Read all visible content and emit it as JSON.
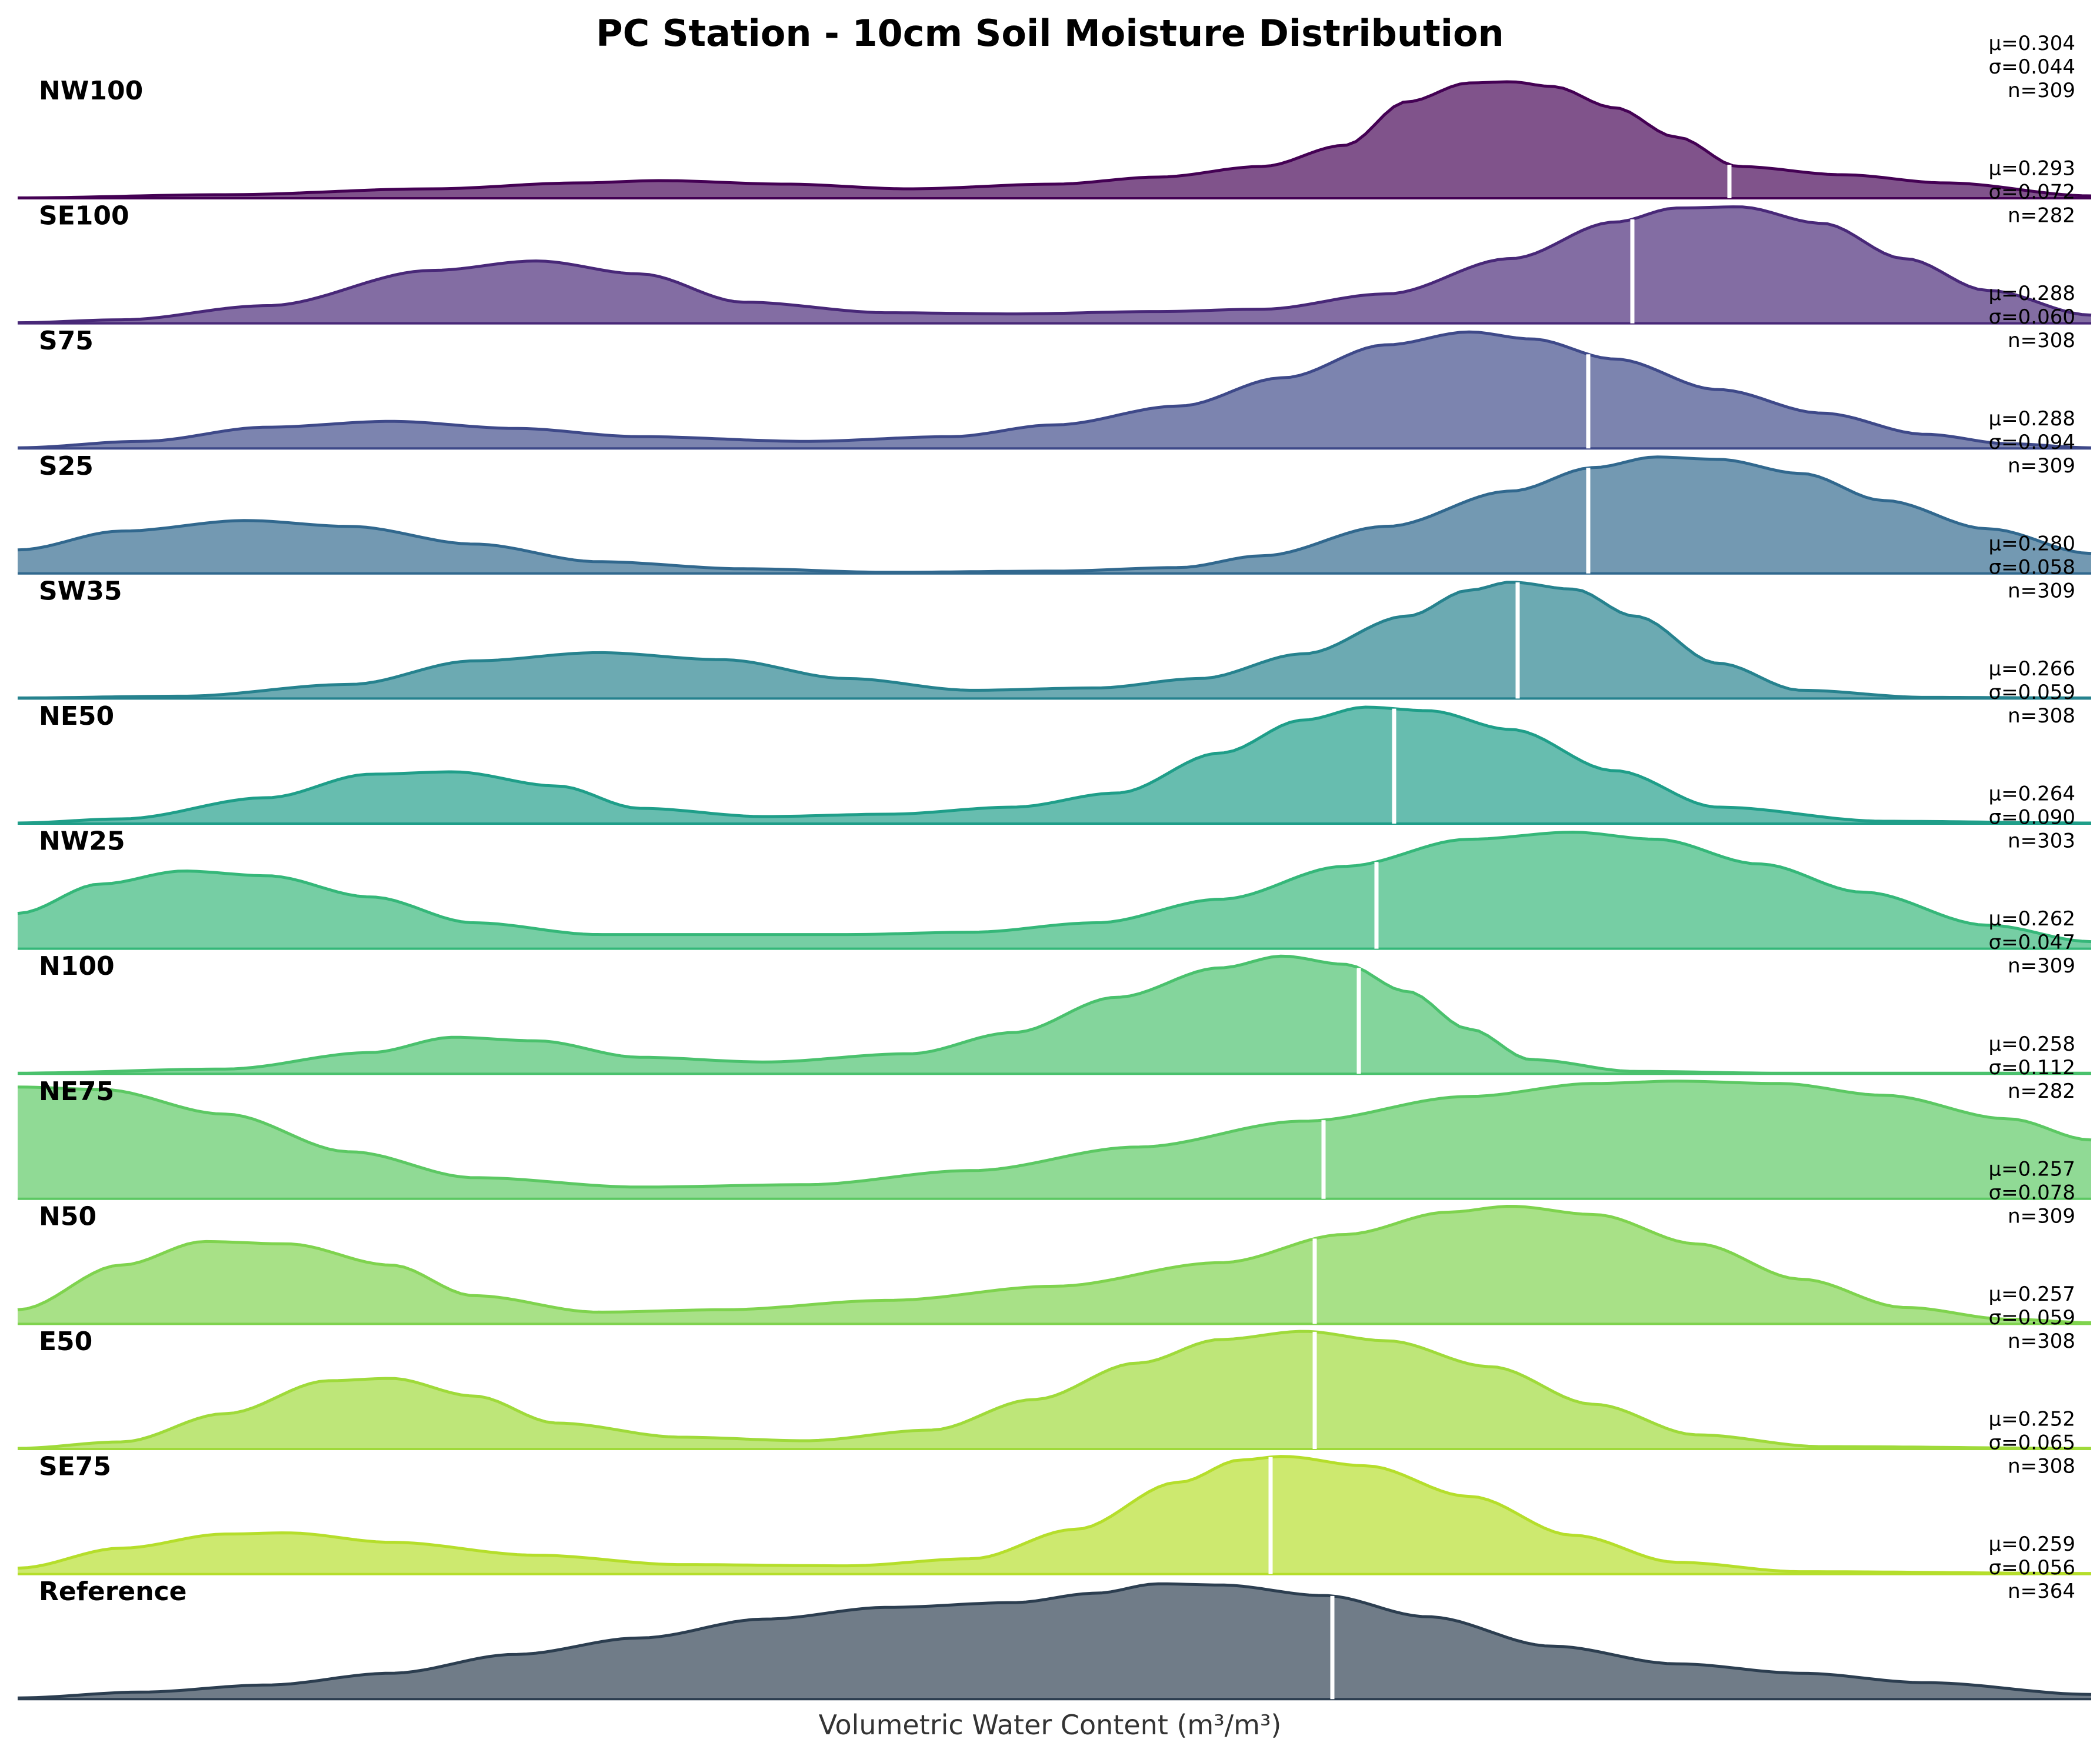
{
  "chart_data": {
    "type": "area",
    "title": "PC Station - 10cm Soil Moisture Distribution",
    "xlabel": "Volumetric Water Content (m³/m³)",
    "ylabel": "",
    "grid": false,
    "x_domain": [
      0,
      1
    ],
    "x_note_hidden": "",
    "series": [
      {
        "name": "NW100",
        "color": "#440154",
        "mean": 0.304,
        "std": 0.044,
        "n": 309,
        "mean_text": "μ=0.304",
        "std_text": "σ=0.044",
        "n_text": "n=309",
        "curve": [
          [
            0,
            0.003
          ],
          [
            0.1,
            0.03
          ],
          [
            0.2,
            0.08
          ],
          [
            0.27,
            0.13
          ],
          [
            0.31,
            0.15
          ],
          [
            0.37,
            0.12
          ],
          [
            0.43,
            0.08
          ],
          [
            0.5,
            0.12
          ],
          [
            0.55,
            0.18
          ],
          [
            0.6,
            0.27
          ],
          [
            0.64,
            0.45
          ],
          [
            0.67,
            0.82
          ],
          [
            0.7,
            0.98
          ],
          [
            0.72,
            0.99
          ],
          [
            0.74,
            0.95
          ],
          [
            0.77,
            0.77
          ],
          [
            0.8,
            0.52
          ],
          [
            0.83,
            0.27
          ],
          [
            0.88,
            0.2
          ],
          [
            0.93,
            0.13
          ],
          [
            1,
            0.02
          ]
        ]
      },
      {
        "name": "SE100",
        "color": "#482878",
        "mean": 0.293,
        "std": 0.072,
        "n": 282,
        "mean_text": "μ=0.293",
        "std_text": "σ=0.072",
        "n_text": "n=282",
        "curve": [
          [
            0,
            0.005
          ],
          [
            0.05,
            0.03
          ],
          [
            0.12,
            0.15
          ],
          [
            0.2,
            0.45
          ],
          [
            0.25,
            0.53
          ],
          [
            0.3,
            0.42
          ],
          [
            0.35,
            0.18
          ],
          [
            0.42,
            0.09
          ],
          [
            0.48,
            0.08
          ],
          [
            0.55,
            0.1
          ],
          [
            0.6,
            0.12
          ],
          [
            0.66,
            0.25
          ],
          [
            0.72,
            0.55
          ],
          [
            0.77,
            0.86
          ],
          [
            0.8,
            0.98
          ],
          [
            0.83,
            0.99
          ],
          [
            0.87,
            0.85
          ],
          [
            0.91,
            0.55
          ],
          [
            0.95,
            0.28
          ],
          [
            1,
            0.07
          ]
        ]
      },
      {
        "name": "S75",
        "color": "#3e4989",
        "mean": 0.288,
        "std": 0.06,
        "n": 308,
        "mean_text": "μ=0.288",
        "std_text": "σ=0.060",
        "n_text": "n=308",
        "curve": [
          [
            0,
            0.005
          ],
          [
            0.06,
            0.06
          ],
          [
            0.12,
            0.18
          ],
          [
            0.18,
            0.23
          ],
          [
            0.24,
            0.17
          ],
          [
            0.3,
            0.1
          ],
          [
            0.38,
            0.06
          ],
          [
            0.45,
            0.1
          ],
          [
            0.5,
            0.2
          ],
          [
            0.56,
            0.36
          ],
          [
            0.61,
            0.6
          ],
          [
            0.66,
            0.88
          ],
          [
            0.7,
            0.99
          ],
          [
            0.73,
            0.93
          ],
          [
            0.77,
            0.76
          ],
          [
            0.82,
            0.5
          ],
          [
            0.87,
            0.3
          ],
          [
            0.92,
            0.12
          ],
          [
            0.96,
            0.04
          ],
          [
            1,
            0.005
          ]
        ]
      },
      {
        "name": "S25",
        "color": "#31688e",
        "mean": 0.288,
        "std": 0.094,
        "n": 309,
        "mean_text": "μ=0.288",
        "std_text": "σ=0.094",
        "n_text": "n=309",
        "curve": [
          [
            0,
            0.2
          ],
          [
            0.05,
            0.36
          ],
          [
            0.11,
            0.45
          ],
          [
            0.16,
            0.4
          ],
          [
            0.22,
            0.25
          ],
          [
            0.28,
            0.1
          ],
          [
            0.35,
            0.04
          ],
          [
            0.42,
            0.01
          ],
          [
            0.5,
            0.02
          ],
          [
            0.56,
            0.05
          ],
          [
            0.6,
            0.15
          ],
          [
            0.66,
            0.4
          ],
          [
            0.72,
            0.7
          ],
          [
            0.76,
            0.9
          ],
          [
            0.79,
            0.99
          ],
          [
            0.82,
            0.97
          ],
          [
            0.86,
            0.85
          ],
          [
            0.9,
            0.62
          ],
          [
            0.95,
            0.38
          ],
          [
            1,
            0.17
          ]
        ]
      },
      {
        "name": "SW35",
        "color": "#26828e",
        "mean": 0.28,
        "std": 0.058,
        "n": 309,
        "mean_text": "μ=0.280",
        "std_text": "σ=0.058",
        "n_text": "n=309",
        "curve": [
          [
            0,
            0.005
          ],
          [
            0.08,
            0.02
          ],
          [
            0.16,
            0.12
          ],
          [
            0.22,
            0.32
          ],
          [
            0.28,
            0.39
          ],
          [
            0.34,
            0.33
          ],
          [
            0.4,
            0.17
          ],
          [
            0.46,
            0.07
          ],
          [
            0.52,
            0.09
          ],
          [
            0.57,
            0.17
          ],
          [
            0.62,
            0.38
          ],
          [
            0.67,
            0.7
          ],
          [
            0.7,
            0.92
          ],
          [
            0.72,
            0.99
          ],
          [
            0.75,
            0.93
          ],
          [
            0.78,
            0.7
          ],
          [
            0.82,
            0.3
          ],
          [
            0.86,
            0.07
          ],
          [
            0.92,
            0.01
          ],
          [
            1,
            0.005
          ]
        ]
      },
      {
        "name": "NE50",
        "color": "#1f9e89",
        "mean": 0.266,
        "std": 0.059,
        "n": 308,
        "mean_text": "μ=0.266",
        "std_text": "σ=0.059",
        "n_text": "n=308",
        "curve": [
          [
            0,
            0.005
          ],
          [
            0.05,
            0.04
          ],
          [
            0.12,
            0.22
          ],
          [
            0.17,
            0.42
          ],
          [
            0.21,
            0.44
          ],
          [
            0.26,
            0.32
          ],
          [
            0.3,
            0.13
          ],
          [
            0.36,
            0.06
          ],
          [
            0.42,
            0.08
          ],
          [
            0.48,
            0.14
          ],
          [
            0.53,
            0.26
          ],
          [
            0.58,
            0.6
          ],
          [
            0.62,
            0.88
          ],
          [
            0.65,
            0.99
          ],
          [
            0.68,
            0.96
          ],
          [
            0.72,
            0.8
          ],
          [
            0.77,
            0.45
          ],
          [
            0.82,
            0.14
          ],
          [
            0.9,
            0.02
          ],
          [
            1,
            0.005
          ]
        ]
      },
      {
        "name": "NW25",
        "color": "#35b779",
        "mean": 0.264,
        "std": 0.09,
        "n": 303,
        "mean_text": "μ=0.264",
        "std_text": "σ=0.090",
        "n_text": "n=303",
        "curve": [
          [
            0,
            0.3
          ],
          [
            0.04,
            0.55
          ],
          [
            0.08,
            0.66
          ],
          [
            0.12,
            0.62
          ],
          [
            0.17,
            0.44
          ],
          [
            0.22,
            0.22
          ],
          [
            0.28,
            0.12
          ],
          [
            0.34,
            0.12
          ],
          [
            0.4,
            0.12
          ],
          [
            0.46,
            0.14
          ],
          [
            0.52,
            0.22
          ],
          [
            0.58,
            0.42
          ],
          [
            0.64,
            0.7
          ],
          [
            0.7,
            0.93
          ],
          [
            0.75,
            0.99
          ],
          [
            0.79,
            0.93
          ],
          [
            0.84,
            0.72
          ],
          [
            0.89,
            0.48
          ],
          [
            0.95,
            0.2
          ],
          [
            1,
            0.06
          ]
        ]
      },
      {
        "name": "N100",
        "color": "#4ac16d",
        "mean": 0.262,
        "std": 0.047,
        "n": 309,
        "mean_text": "μ=0.262",
        "std_text": "σ=0.047",
        "n_text": "n=309",
        "curve": [
          [
            0,
            0.005
          ],
          [
            0.1,
            0.04
          ],
          [
            0.17,
            0.18
          ],
          [
            0.21,
            0.31
          ],
          [
            0.25,
            0.28
          ],
          [
            0.3,
            0.14
          ],
          [
            0.36,
            0.1
          ],
          [
            0.43,
            0.17
          ],
          [
            0.48,
            0.35
          ],
          [
            0.53,
            0.65
          ],
          [
            0.58,
            0.9
          ],
          [
            0.61,
            1.0
          ],
          [
            0.64,
            0.93
          ],
          [
            0.67,
            0.7
          ],
          [
            0.7,
            0.38
          ],
          [
            0.73,
            0.12
          ],
          [
            0.78,
            0.02
          ],
          [
            0.85,
            0.005
          ],
          [
            1,
            0.005
          ]
        ]
      },
      {
        "name": "NE75",
        "color": "#5cc863",
        "mean": 0.258,
        "std": 0.112,
        "n": 282,
        "mean_text": "μ=0.258",
        "std_text": "σ=0.112",
        "n_text": "n=282",
        "curve": [
          [
            0,
            0.95
          ],
          [
            0.04,
            0.93
          ],
          [
            0.1,
            0.72
          ],
          [
            0.16,
            0.4
          ],
          [
            0.22,
            0.18
          ],
          [
            0.3,
            0.1
          ],
          [
            0.38,
            0.12
          ],
          [
            0.46,
            0.24
          ],
          [
            0.54,
            0.44
          ],
          [
            0.62,
            0.66
          ],
          [
            0.7,
            0.87
          ],
          [
            0.76,
            0.98
          ],
          [
            0.8,
            1.0
          ],
          [
            0.85,
            0.98
          ],
          [
            0.9,
            0.88
          ],
          [
            0.96,
            0.68
          ],
          [
            1,
            0.5
          ]
        ]
      },
      {
        "name": "N50",
        "color": "#7fd34e",
        "mean": 0.257,
        "std": 0.078,
        "n": 309,
        "mean_text": "μ=0.257",
        "std_text": "σ=0.078",
        "n_text": "n=309",
        "curve": [
          [
            0,
            0.12
          ],
          [
            0.05,
            0.5
          ],
          [
            0.09,
            0.7
          ],
          [
            0.13,
            0.68
          ],
          [
            0.18,
            0.5
          ],
          [
            0.22,
            0.24
          ],
          [
            0.28,
            0.1
          ],
          [
            0.34,
            0.12
          ],
          [
            0.42,
            0.2
          ],
          [
            0.5,
            0.32
          ],
          [
            0.58,
            0.52
          ],
          [
            0.64,
            0.76
          ],
          [
            0.69,
            0.95
          ],
          [
            0.72,
            1.0
          ],
          [
            0.76,
            0.93
          ],
          [
            0.81,
            0.68
          ],
          [
            0.86,
            0.38
          ],
          [
            0.91,
            0.14
          ],
          [
            0.96,
            0.04
          ],
          [
            1,
            0.01
          ]
        ]
      },
      {
        "name": "E50",
        "color": "#9fda3a",
        "mean": 0.257,
        "std": 0.059,
        "n": 308,
        "mean_text": "μ=0.257",
        "std_text": "σ=0.059",
        "n_text": "n=308",
        "curve": [
          [
            0,
            0.005
          ],
          [
            0.05,
            0.06
          ],
          [
            0.1,
            0.3
          ],
          [
            0.15,
            0.58
          ],
          [
            0.18,
            0.6
          ],
          [
            0.22,
            0.45
          ],
          [
            0.26,
            0.22
          ],
          [
            0.32,
            0.1
          ],
          [
            0.38,
            0.07
          ],
          [
            0.44,
            0.16
          ],
          [
            0.49,
            0.42
          ],
          [
            0.54,
            0.73
          ],
          [
            0.58,
            0.93
          ],
          [
            0.62,
            1.0
          ],
          [
            0.66,
            0.92
          ],
          [
            0.71,
            0.7
          ],
          [
            0.76,
            0.38
          ],
          [
            0.81,
            0.12
          ],
          [
            0.87,
            0.02
          ],
          [
            1,
            0.005
          ]
        ]
      },
      {
        "name": "SE75",
        "color": "#b5de2b",
        "mean": 0.252,
        "std": 0.065,
        "n": 308,
        "mean_text": "μ=0.252",
        "std_text": "σ=0.065",
        "n_text": "n=308",
        "curve": [
          [
            0,
            0.05
          ],
          [
            0.05,
            0.22
          ],
          [
            0.1,
            0.34
          ],
          [
            0.13,
            0.35
          ],
          [
            0.18,
            0.27
          ],
          [
            0.25,
            0.16
          ],
          [
            0.32,
            0.08
          ],
          [
            0.4,
            0.07
          ],
          [
            0.46,
            0.13
          ],
          [
            0.51,
            0.38
          ],
          [
            0.56,
            0.78
          ],
          [
            0.59,
            0.97
          ],
          [
            0.61,
            1.0
          ],
          [
            0.65,
            0.92
          ],
          [
            0.7,
            0.66
          ],
          [
            0.75,
            0.33
          ],
          [
            0.8,
            0.1
          ],
          [
            0.86,
            0.02
          ],
          [
            1,
            0.005
          ]
        ]
      },
      {
        "name": "Reference",
        "color": "#2c3e50",
        "mean": 0.259,
        "std": 0.056,
        "n": 364,
        "mean_text": "μ=0.259",
        "std_text": "σ=0.056",
        "n_text": "n=364",
        "curve": [
          [
            0,
            0.01
          ],
          [
            0.06,
            0.06
          ],
          [
            0.12,
            0.12
          ],
          [
            0.18,
            0.22
          ],
          [
            0.24,
            0.38
          ],
          [
            0.3,
            0.52
          ],
          [
            0.36,
            0.68
          ],
          [
            0.42,
            0.78
          ],
          [
            0.48,
            0.82
          ],
          [
            0.52,
            0.9
          ],
          [
            0.55,
            0.98
          ],
          [
            0.58,
            0.97
          ],
          [
            0.63,
            0.88
          ],
          [
            0.68,
            0.7
          ],
          [
            0.74,
            0.45
          ],
          [
            0.8,
            0.3
          ],
          [
            0.86,
            0.22
          ],
          [
            0.92,
            0.14
          ],
          [
            1,
            0.04
          ]
        ]
      }
    ]
  }
}
